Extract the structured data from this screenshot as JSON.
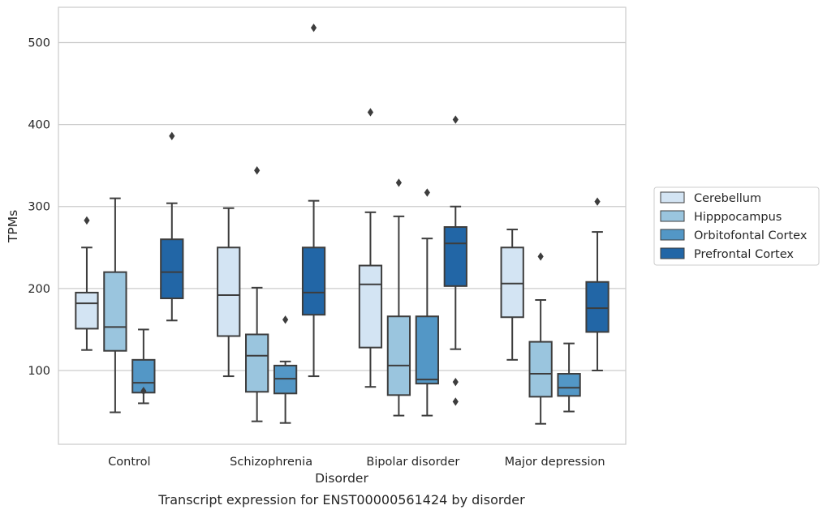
{
  "chart_data": {
    "type": "box",
    "title": "",
    "caption": "Transcript expression for ENST00000561424 by disorder",
    "xlabel": "Disorder",
    "ylabel": "TPMs",
    "ylim": [
      10,
      543
    ],
    "yticks": [
      100,
      200,
      300,
      400,
      500
    ],
    "grid": true,
    "legend_position": "right",
    "categories": [
      "Control",
      "Schizophrenia",
      "Bipolar disorder",
      "Major depression"
    ],
    "series": [
      {
        "name": "Cerebellum",
        "color": "#d3e4f3",
        "boxes": [
          {
            "whislo": 125,
            "q1": 151,
            "med": 182,
            "q3": 195,
            "whishi": 250,
            "fliers": [
              283
            ]
          },
          {
            "whislo": 93,
            "q1": 142,
            "med": 192,
            "q3": 250,
            "whishi": 298,
            "fliers": []
          },
          {
            "whislo": 80,
            "q1": 128,
            "med": 205,
            "q3": 228,
            "whishi": 293,
            "fliers": [
              415
            ]
          },
          {
            "whislo": 113,
            "q1": 165,
            "med": 206,
            "q3": 250,
            "whishi": 272,
            "fliers": []
          }
        ]
      },
      {
        "name": "Hipppocampus",
        "color": "#9ac5de",
        "boxes": [
          {
            "whislo": 49,
            "q1": 124,
            "med": 153,
            "q3": 220,
            "whishi": 310,
            "fliers": []
          },
          {
            "whislo": 38,
            "q1": 74,
            "med": 118,
            "q3": 144,
            "whishi": 201,
            "fliers": [
              344
            ]
          },
          {
            "whislo": 45,
            "q1": 70,
            "med": 106,
            "q3": 166,
            "whishi": 288,
            "fliers": [
              329
            ]
          },
          {
            "whislo": 35,
            "q1": 68,
            "med": 96,
            "q3": 135,
            "whishi": 186,
            "fliers": [
              239
            ]
          }
        ]
      },
      {
        "name": "Orbitofontal Cortex",
        "color": "#5397c6",
        "boxes": [
          {
            "whislo": 60,
            "q1": 73,
            "med": 85,
            "q3": 113,
            "whishi": 150,
            "fliers": [
              75
            ]
          },
          {
            "whislo": 36,
            "q1": 72,
            "med": 90,
            "q3": 106,
            "whishi": 111,
            "fliers": [
              162
            ]
          },
          {
            "whislo": 45,
            "q1": 84,
            "med": 89,
            "q3": 166,
            "whishi": 261,
            "fliers": [
              317
            ]
          },
          {
            "whislo": 50,
            "q1": 69,
            "med": 79,
            "q3": 96,
            "whishi": 133,
            "fliers": []
          }
        ]
      },
      {
        "name": "Prefrontal Cortex",
        "color": "#2266a6",
        "boxes": [
          {
            "whislo": 161,
            "q1": 188,
            "med": 220,
            "q3": 260,
            "whishi": 304,
            "fliers": [
              386
            ]
          },
          {
            "whislo": 93,
            "q1": 168,
            "med": 195,
            "q3": 250,
            "whishi": 307,
            "fliers": [
              518
            ]
          },
          {
            "whislo": 126,
            "q1": 203,
            "med": 255,
            "q3": 275,
            "whishi": 300,
            "fliers": [
              406,
              86,
              62
            ]
          },
          {
            "whislo": 100,
            "q1": 147,
            "med": 176,
            "q3": 208,
            "whishi": 269,
            "fliers": [
              306
            ]
          }
        ]
      }
    ]
  }
}
